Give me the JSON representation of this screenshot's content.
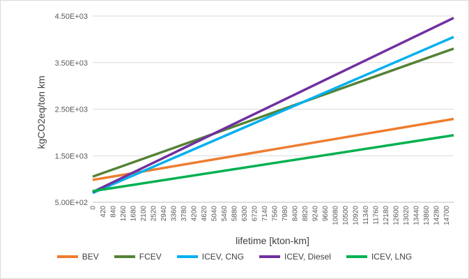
{
  "chart_data": {
    "type": "line",
    "title": "",
    "xlabel": "lifetime [kton-km]",
    "ylabel": "kgCO2eq/ton km",
    "x_ticks": [
      "0",
      "420",
      "840",
      "1260",
      "1680",
      "2100",
      "2520",
      "2940",
      "3360",
      "3780",
      "4200",
      "4620",
      "5040",
      "5460",
      "5880",
      "6300",
      "6720",
      "7140",
      "7560",
      "7980",
      "8400",
      "8820",
      "9240",
      "9660",
      "10080",
      "10500",
      "10920",
      "11340",
      "11760",
      "12180",
      "12600",
      "13020",
      "13440",
      "13860",
      "14280",
      "14700"
    ],
    "xlim": [
      0,
      15000
    ],
    "y_ticks": [
      "5.00E+02",
      "1.50E+03",
      "2.50E+03",
      "3.50E+03",
      "4.50E+03"
    ],
    "ylim": [
      500,
      4500
    ],
    "grid": "horizontal",
    "legend_position": "bottom",
    "series": [
      {
        "name": "BEV",
        "color": "#ED7D31",
        "x": [
          0,
          15000
        ],
        "values": [
          980,
          2290
        ]
      },
      {
        "name": "FCEV",
        "color": "#548235",
        "x": [
          0,
          15000
        ],
        "values": [
          1050,
          3800
        ]
      },
      {
        "name": "ICEV, CNG",
        "color": "#00B0F0",
        "x": [
          0,
          15000
        ],
        "values": [
          700,
          4050
        ]
      },
      {
        "name": "ICEV, Diesel",
        "color": "#7030A0",
        "x": [
          0,
          15000
        ],
        "values": [
          720,
          4460
        ]
      },
      {
        "name": "ICEV, LNG",
        "color": "#00B050",
        "x": [
          0,
          15000
        ],
        "values": [
          740,
          1940
        ]
      }
    ]
  }
}
